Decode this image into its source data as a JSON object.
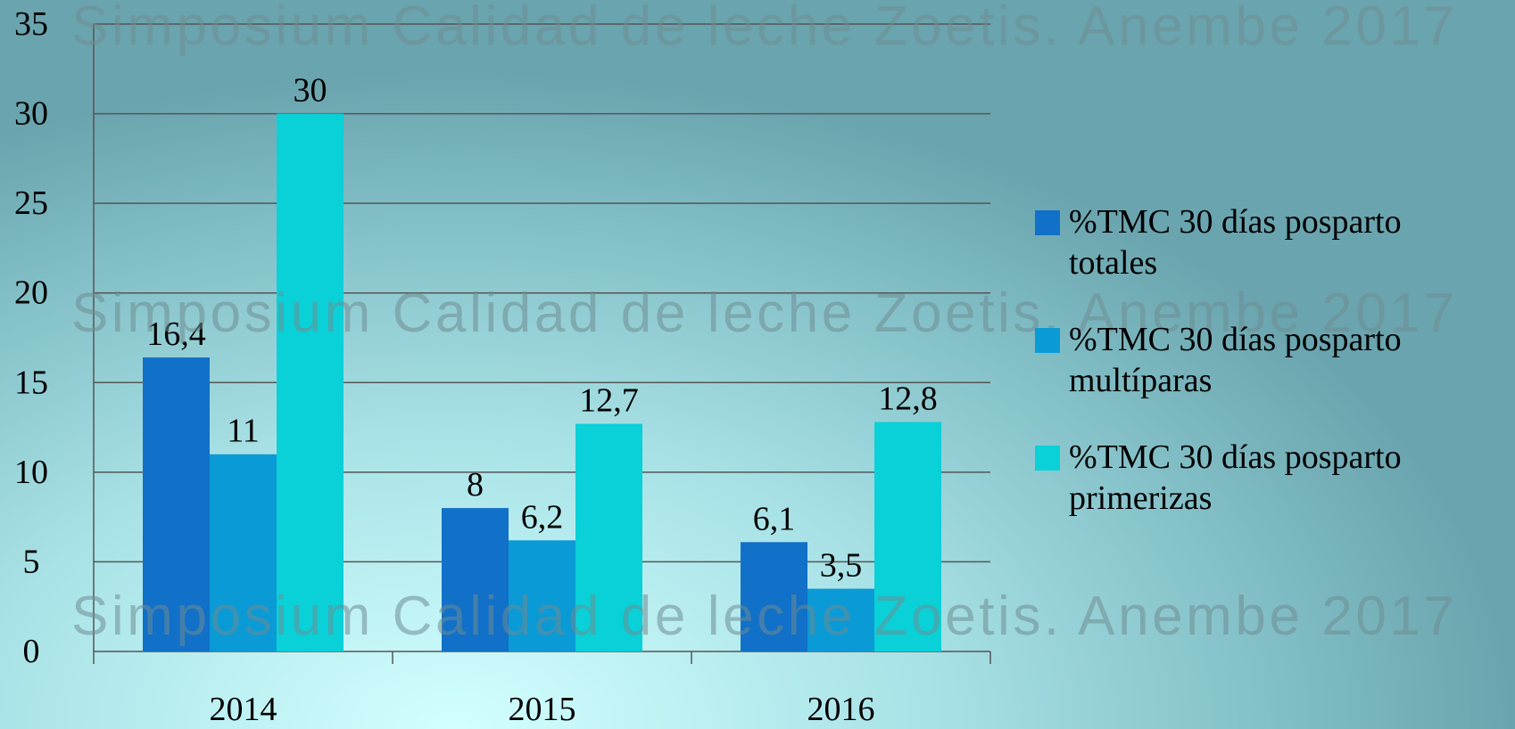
{
  "chart_data": {
    "type": "bar",
    "watermark": "Simposium Calidad de leche Zoetis. Anembe 2017",
    "categories": [
      "2014",
      "2015",
      "2016"
    ],
    "series": [
      {
        "name": "%TMC 30 días posparto totales",
        "color": "#1170c8",
        "values": [
          16.4,
          8,
          6.1
        ],
        "value_labels": [
          "16,4",
          "8",
          "6,1"
        ]
      },
      {
        "name": "%TMC 30 días posparto multíparas",
        "color": "#0a9ad6",
        "values": [
          11,
          6.2,
          3.5
        ],
        "value_labels": [
          "11",
          "6,2",
          "3,5"
        ]
      },
      {
        "name": "%TMC 30 días posparto primerizas",
        "color": "#0ad0d8",
        "values": [
          30,
          12.7,
          12.8
        ],
        "value_labels": [
          "30",
          "12,7",
          "12,8"
        ]
      }
    ],
    "ylim": [
      0,
      35
    ],
    "yticks": [
      0,
      5,
      10,
      15,
      20,
      25,
      30,
      35
    ],
    "grid": true,
    "legend": "right"
  }
}
